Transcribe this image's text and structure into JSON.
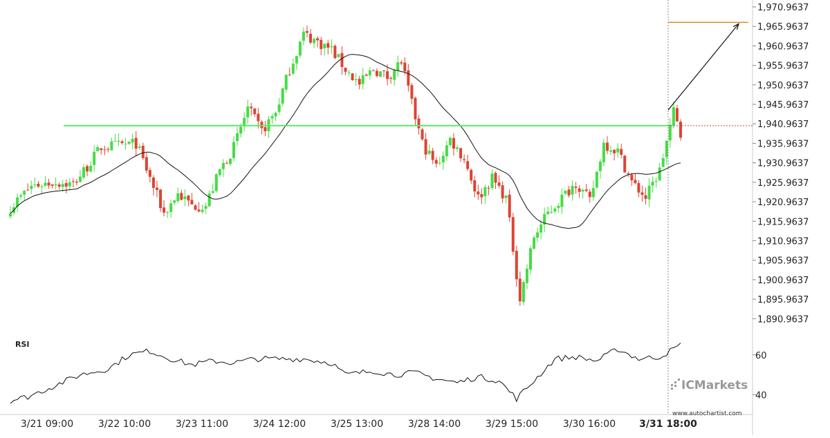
{
  "chart_data": {
    "type": "candlestick",
    "y_axis": {
      "ticks": [
        "1,970.9637",
        "1,965.9637",
        "1,960.9637",
        "1,955.9637",
        "1,950.9637",
        "1,945.9637",
        "1,940.9637",
        "1,935.9637",
        "1,930.9637",
        "1,925.9637",
        "1,920.9637",
        "1,915.9637",
        "1,910.9637",
        "1,905.9637",
        "1,900.9637",
        "1,895.9637",
        "1,890.9637"
      ],
      "ylim": [
        1888,
        1971.5
      ]
    },
    "x_axis": {
      "ticks": [
        "3/21 09:00",
        "3/22 10:00",
        "3/23 11:00",
        "3/24 12:00",
        "3/25 13:00",
        "3/28 14:00",
        "3/29 15:00",
        "3/30 16:00",
        "3/31 18:00"
      ],
      "current_label": "3/31 18:00"
    },
    "support_resistance_level": 1940.5,
    "target_level": 1967.0,
    "current_price_level": 1940.5,
    "price_path_key_points": [
      {
        "i": 0,
        "p": 1919.5
      },
      {
        "i": 6,
        "p": 1925
      },
      {
        "i": 12,
        "p": 1926
      },
      {
        "i": 18,
        "p": 1925.5
      },
      {
        "i": 22,
        "p": 1930
      },
      {
        "i": 26,
        "p": 1935
      },
      {
        "i": 32,
        "p": 1935.5
      },
      {
        "i": 36,
        "p": 1936
      },
      {
        "i": 40,
        "p": 1927
      },
      {
        "i": 44,
        "p": 1918
      },
      {
        "i": 48,
        "p": 1923
      },
      {
        "i": 52,
        "p": 1920
      },
      {
        "i": 56,
        "p": 1920
      },
      {
        "i": 60,
        "p": 1929
      },
      {
        "i": 64,
        "p": 1935
      },
      {
        "i": 68,
        "p": 1945
      },
      {
        "i": 72,
        "p": 1939
      },
      {
        "i": 76,
        "p": 1944
      },
      {
        "i": 80,
        "p": 1955
      },
      {
        "i": 84,
        "p": 1964
      },
      {
        "i": 88,
        "p": 1962
      },
      {
        "i": 92,
        "p": 1960
      },
      {
        "i": 96,
        "p": 1955
      },
      {
        "i": 100,
        "p": 1951
      },
      {
        "i": 104,
        "p": 1955
      },
      {
        "i": 108,
        "p": 1953
      },
      {
        "i": 112,
        "p": 1957
      },
      {
        "i": 115,
        "p": 1946
      },
      {
        "i": 118,
        "p": 1936
      },
      {
        "i": 122,
        "p": 1930
      },
      {
        "i": 126,
        "p": 1937
      },
      {
        "i": 130,
        "p": 1932
      },
      {
        "i": 134,
        "p": 1922
      },
      {
        "i": 138,
        "p": 1927
      },
      {
        "i": 142,
        "p": 1922
      },
      {
        "i": 146,
        "p": 1896
      },
      {
        "i": 150,
        "p": 1912
      },
      {
        "i": 154,
        "p": 1918
      },
      {
        "i": 158,
        "p": 1922
      },
      {
        "i": 162,
        "p": 1926
      },
      {
        "i": 166,
        "p": 1921
      },
      {
        "i": 170,
        "p": 1936
      },
      {
        "i": 174,
        "p": 1934
      },
      {
        "i": 178,
        "p": 1926
      },
      {
        "i": 182,
        "p": 1922
      },
      {
        "i": 186,
        "p": 1929
      },
      {
        "i": 190,
        "p": 1944
      },
      {
        "i": 192,
        "p": 1938
      }
    ],
    "candle_count": 193,
    "moving_average_period": 20,
    "rsi": {
      "label": "RSI",
      "ticks": [
        "60",
        "40"
      ],
      "ylim": [
        30,
        70
      ],
      "key_points": [
        {
          "i": 0,
          "v": 37
        },
        {
          "i": 5,
          "v": 39
        },
        {
          "i": 12,
          "v": 44
        },
        {
          "i": 20,
          "v": 50
        },
        {
          "i": 28,
          "v": 53
        },
        {
          "i": 34,
          "v": 60
        },
        {
          "i": 40,
          "v": 62
        },
        {
          "i": 46,
          "v": 58
        },
        {
          "i": 52,
          "v": 55
        },
        {
          "i": 58,
          "v": 57
        },
        {
          "i": 64,
          "v": 56
        },
        {
          "i": 70,
          "v": 58
        },
        {
          "i": 78,
          "v": 58
        },
        {
          "i": 84,
          "v": 58
        },
        {
          "i": 92,
          "v": 56
        },
        {
          "i": 96,
          "v": 50
        },
        {
          "i": 104,
          "v": 52
        },
        {
          "i": 110,
          "v": 50
        },
        {
          "i": 116,
          "v": 51
        },
        {
          "i": 122,
          "v": 48
        },
        {
          "i": 128,
          "v": 46
        },
        {
          "i": 134,
          "v": 49
        },
        {
          "i": 140,
          "v": 47
        },
        {
          "i": 145,
          "v": 38
        },
        {
          "i": 150,
          "v": 47
        },
        {
          "i": 156,
          "v": 58
        },
        {
          "i": 162,
          "v": 59
        },
        {
          "i": 168,
          "v": 57
        },
        {
          "i": 174,
          "v": 63
        },
        {
          "i": 180,
          "v": 58
        },
        {
          "i": 186,
          "v": 59
        },
        {
          "i": 192,
          "v": 65
        }
      ]
    }
  },
  "branding": {
    "logo_text": "ICMarkets",
    "url": "www.autochartist.com"
  },
  "colors": {
    "bullish": "#44dd44",
    "bearish": "#dd4433",
    "support_line": "#55ee66",
    "target_line": "#d98c1a",
    "moving_average": "#111111",
    "rsi_line": "#111111",
    "axis_border": "#cccccc",
    "vline": "#888888",
    "logo": "#999999"
  }
}
